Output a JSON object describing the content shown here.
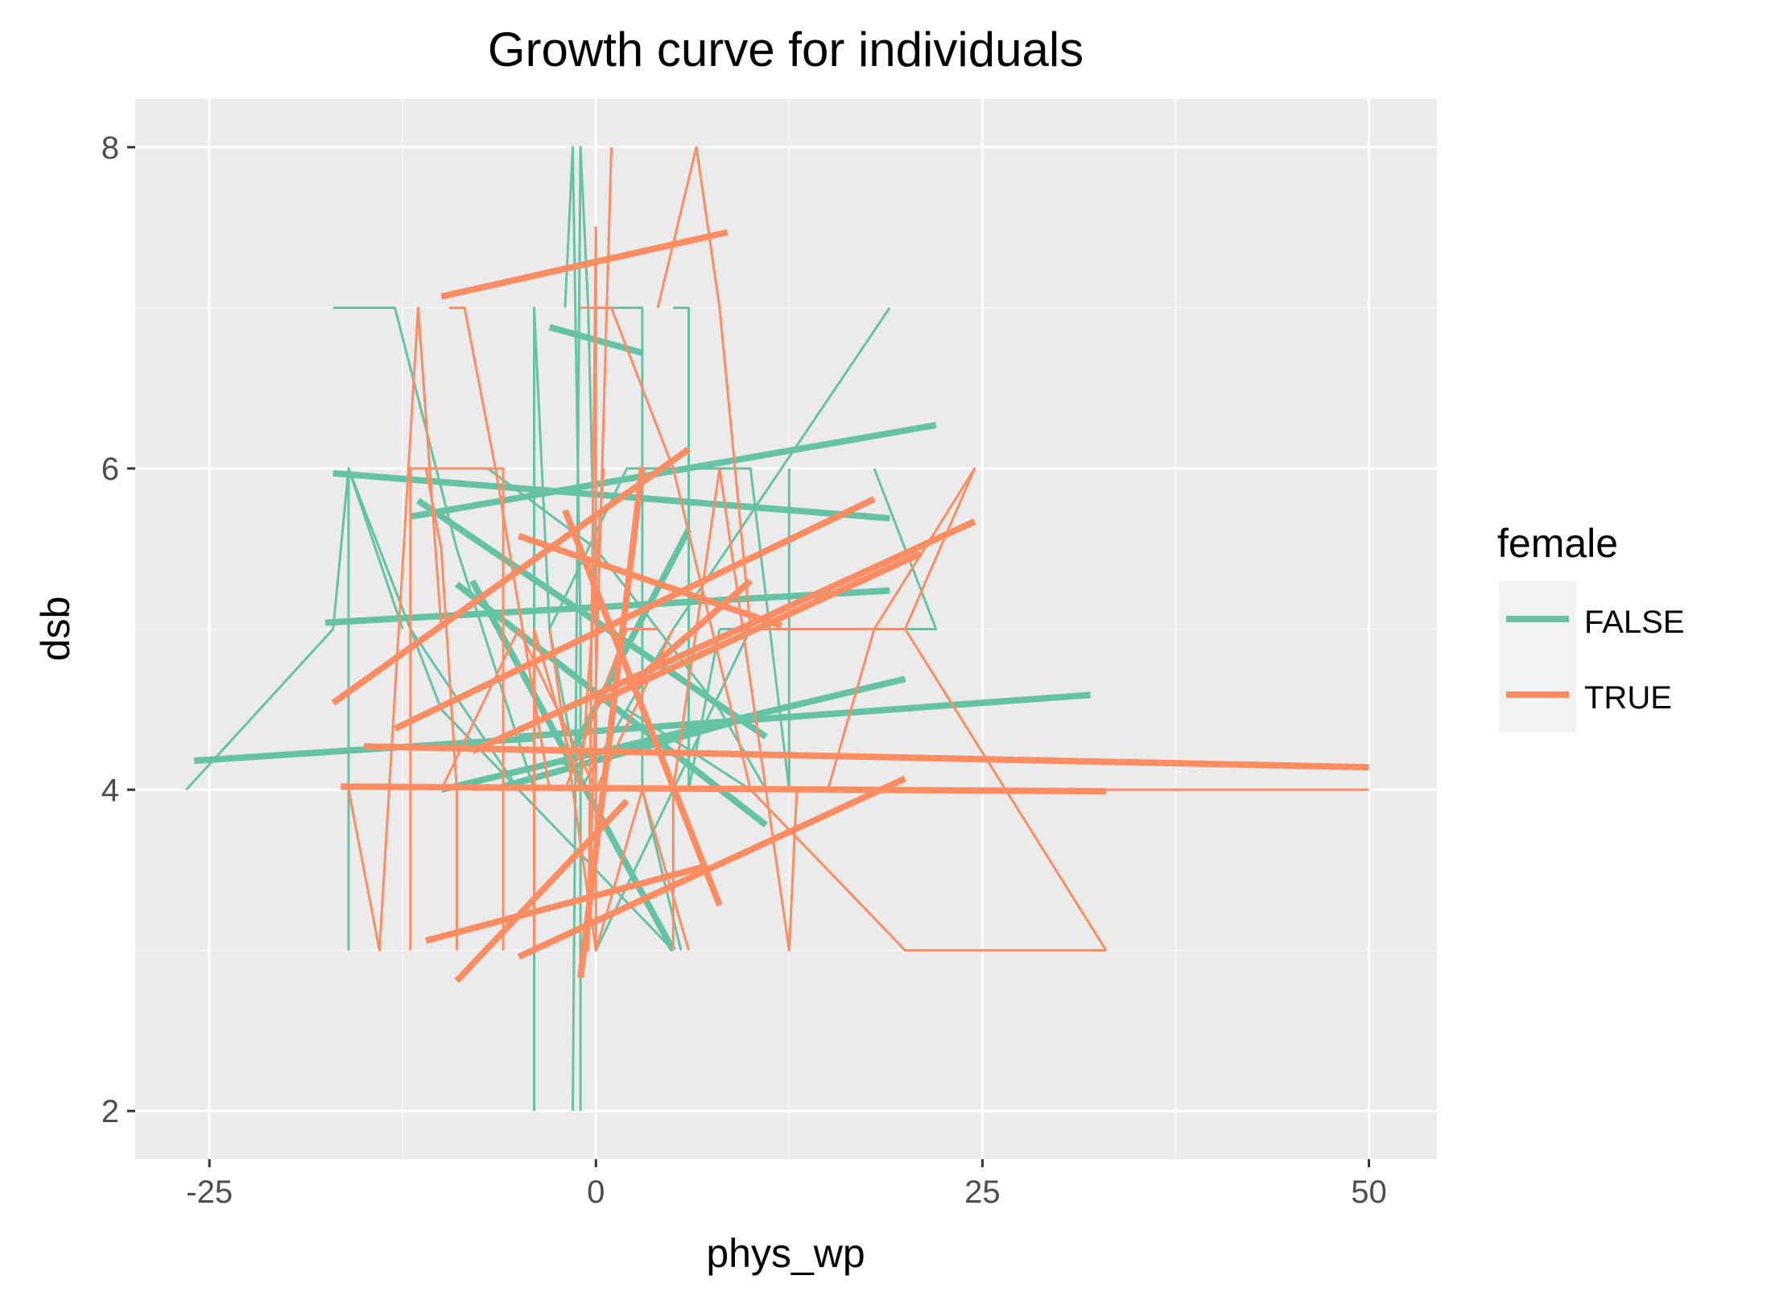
{
  "chart_data": {
    "type": "line",
    "title": "Growth curve for individuals",
    "xlabel": "phys_wp",
    "ylabel": "dsb",
    "xlim": [
      -29.8,
      54.4
    ],
    "ylim": [
      1.7,
      8.3
    ],
    "xticks": [
      -25,
      0,
      25,
      50
    ],
    "yticks": [
      2,
      4,
      6,
      8
    ],
    "xtick_labels": [
      "-25",
      "0",
      "25",
      "50"
    ],
    "ytick_labels": [
      "2",
      "4",
      "6",
      "8"
    ],
    "grid": true,
    "legend": {
      "title": "female",
      "position": "right",
      "entries": [
        "FALSE",
        "TRUE"
      ]
    },
    "colors": {
      "FALSE": "#66C2A5",
      "TRUE": "#FC8D62",
      "panel": "#EBEBEB",
      "grid": "#FFFFFF"
    },
    "series": [
      {
        "name": "FALSE",
        "observed": [
          [
            [
              -26.5,
              4.0
            ],
            [
              -17.0,
              5.0
            ],
            [
              -16.0,
              6.0
            ],
            [
              -12.5,
              5.0
            ]
          ],
          [
            [
              -17.0,
              7.0
            ],
            [
              -13.0,
              7.0
            ],
            [
              -9.0,
              5.5
            ],
            [
              -4.0,
              4.0
            ]
          ],
          [
            [
              -16.0,
              3.0
            ],
            [
              -16.0,
              6.0
            ],
            [
              -10.0,
              4.5
            ],
            [
              -5.0,
              4.0
            ]
          ],
          [
            [
              -4.0,
              2.0
            ],
            [
              -4.0,
              7.0
            ],
            [
              -3.0,
              5.0
            ],
            [
              -1.0,
              4.0
            ]
          ],
          [
            [
              -1.5,
              2.0
            ],
            [
              -1.0,
              8.0
            ],
            [
              -0.5,
              7.0
            ],
            [
              0.0,
              5.0
            ]
          ],
          [
            [
              -2.0,
              7.0
            ],
            [
              -1.5,
              8.0
            ],
            [
              -1.0,
              5.0
            ],
            [
              -1.0,
              2.0
            ]
          ],
          [
            [
              0.5,
              7.0
            ],
            [
              3.0,
              7.0
            ],
            [
              3.0,
              4.0
            ],
            [
              5.5,
              3.0
            ]
          ],
          [
            [
              5.0,
              7.0
            ],
            [
              6.0,
              7.0
            ],
            [
              6.0,
              4.0
            ],
            [
              8.0,
              5.0
            ]
          ],
          [
            [
              -3.0,
              5.0
            ],
            [
              2.0,
              6.0
            ],
            [
              6.0,
              6.0
            ],
            [
              10.0,
              6.0
            ],
            [
              12.5,
              4.0
            ],
            [
              12.5,
              6.0
            ]
          ],
          [
            [
              8.0,
              5.0
            ],
            [
              12.0,
              5.0
            ],
            [
              22.0,
              5.0
            ],
            [
              18.0,
              6.0
            ]
          ],
          [
            [
              -1.0,
              4.0
            ],
            [
              5.0,
              5.0
            ],
            [
              19.0,
              7.0
            ]
          ],
          [
            [
              2.0,
              4.5
            ],
            [
              10.0,
              4.0
            ],
            [
              12.0,
              4.0
            ],
            [
              32.0,
              4.0
            ]
          ],
          [
            [
              -7.0,
              6.0
            ],
            [
              0.0,
              5.5
            ],
            [
              8.0,
              4.5
            ],
            [
              11.0,
              4.0
            ]
          ],
          [
            [
              -12.0,
              5.0
            ],
            [
              -5.0,
              4.0
            ],
            [
              5.0,
              3.0
            ]
          ],
          [
            [
              0.0,
              3.0
            ],
            [
              5.0,
              4.0
            ],
            [
              10.0,
              5.0
            ],
            [
              15.0,
              5.0
            ]
          ]
        ],
        "fitted": [
          [
            [
              -26.0,
              4.18
            ],
            [
              -4.0,
              4.32
            ]
          ],
          [
            [
              -17.0,
              5.97
            ],
            [
              19.0,
              5.69
            ]
          ],
          [
            [
              -17.5,
              5.04
            ],
            [
              19.0,
              5.24
            ]
          ],
          [
            [
              -12.0,
              5.7
            ],
            [
              22.0,
              6.27
            ]
          ],
          [
            [
              -3.0,
              6.88
            ],
            [
              3.0,
              6.72
            ]
          ],
          [
            [
              -11.5,
              5.8
            ],
            [
              11.0,
              4.33
            ]
          ],
          [
            [
              -9.0,
              5.28
            ],
            [
              11.0,
              3.78
            ]
          ],
          [
            [
              -10.0,
              4.0
            ],
            [
              20.0,
              4.69
            ]
          ],
          [
            [
              -5.0,
              4.33
            ],
            [
              32.0,
              4.59
            ]
          ],
          [
            [
              -8.0,
              5.3
            ],
            [
              5.0,
              3.0
            ]
          ],
          [
            [
              -6.0,
              4.02
            ],
            [
              10.0,
              4.45
            ]
          ],
          [
            [
              -2.0,
              4.15
            ],
            [
              6.0,
              5.62
            ]
          ]
        ]
      },
      {
        "name": "TRUE",
        "observed": [
          [
            [
              -16.0,
              4.0
            ],
            [
              -14.0,
              3.0
            ],
            [
              -11.5,
              7.0
            ],
            [
              -10.0,
              5.0
            ]
          ],
          [
            [
              -9.5,
              7.0
            ],
            [
              -8.5,
              7.0
            ],
            [
              -6.5,
              6.0
            ],
            [
              -3.0,
              4.0
            ]
          ],
          [
            [
              -11.0,
              6.0
            ],
            [
              -10.0,
              5.5
            ],
            [
              -9.0,
              4.0
            ],
            [
              -9.0,
              3.0
            ]
          ],
          [
            [
              1.0,
              8.0
            ],
            [
              -0.5,
              3.0
            ],
            [
              0.0,
              7.5
            ],
            [
              0.0,
              3.0
            ]
          ],
          [
            [
              4.0,
              7.0
            ],
            [
              6.5,
              8.0
            ],
            [
              8.0,
              7.0
            ],
            [
              10.0,
              5.0
            ],
            [
              20.0,
              5.0
            ]
          ],
          [
            [
              -1.0,
              7.0
            ],
            [
              1.0,
              7.0
            ],
            [
              5.0,
              6.0
            ],
            [
              10.0,
              4.0
            ],
            [
              20.0,
              3.0
            ],
            [
              33.0,
              3.0
            ]
          ],
          [
            [
              5.0,
              3.0
            ],
            [
              5.0,
              4.0
            ],
            [
              8.0,
              6.0
            ],
            [
              12.5,
              3.0
            ],
            [
              13.0,
              4.0
            ]
          ],
          [
            [
              11.0,
              4.0
            ],
            [
              20.0,
              4.0
            ],
            [
              35.0,
              4.0
            ],
            [
              50.0,
              4.0
            ]
          ],
          [
            [
              -10.0,
              4.0
            ],
            [
              -5.0,
              5.0
            ],
            [
              0.0,
              4.0
            ],
            [
              5.0,
              5.0
            ]
          ],
          [
            [
              -4.0,
              3.0
            ],
            [
              -4.0,
              5.0
            ],
            [
              -1.0,
              4.0
            ],
            [
              0.5,
              6.0
            ]
          ],
          [
            [
              -12.0,
              3.0
            ],
            [
              -12.0,
              6.0
            ],
            [
              -6.0,
              6.0
            ],
            [
              -6.0,
              3.0
            ]
          ],
          [
            [
              15.0,
              4.0
            ],
            [
              18.0,
              5.0
            ],
            [
              24.5,
              6.0
            ],
            [
              20.0,
              5.0
            ],
            [
              33.0,
              3.0
            ]
          ],
          [
            [
              -3.0,
              5.0
            ],
            [
              0.0,
              3.0
            ],
            [
              3.0,
              4.0
            ],
            [
              6.0,
              3.0
            ]
          ],
          [
            [
              -8.0,
              4.0
            ],
            [
              -2.0,
              4.0
            ],
            [
              2.0,
              5.0
            ],
            [
              4.0,
              5.0
            ]
          ]
        ],
        "fitted": [
          [
            [
              -10.0,
              7.07
            ],
            [
              8.5,
              7.47
            ]
          ],
          [
            [
              -17.0,
              4.54
            ],
            [
              6.0,
              6.12
            ]
          ],
          [
            [
              -16.5,
              4.02
            ],
            [
              33.0,
              3.99
            ]
          ],
          [
            [
              -15.0,
              4.27
            ],
            [
              50.0,
              4.14
            ]
          ],
          [
            [
              -13.0,
              4.38
            ],
            [
              18.0,
              5.81
            ]
          ],
          [
            [
              -11.0,
              3.06
            ],
            [
              7.0,
              3.52
            ]
          ],
          [
            [
              -9.0,
              2.81
            ],
            [
              2.0,
              3.93
            ]
          ],
          [
            [
              -5.0,
              2.96
            ],
            [
              20.0,
              4.07
            ]
          ],
          [
            [
              -8.0,
              4.24
            ],
            [
              24.5,
              5.67
            ]
          ],
          [
            [
              -2.0,
              5.74
            ],
            [
              8.0,
              3.28
            ]
          ],
          [
            [
              -1.0,
              2.83
            ],
            [
              3.0,
              6.01
            ]
          ],
          [
            [
              0.0,
              4.54
            ],
            [
              21.0,
              5.47
            ]
          ],
          [
            [
              -5.0,
              5.58
            ],
            [
              12.0,
              5.02
            ]
          ],
          [
            [
              2.0,
              4.63
            ],
            [
              10.0,
              5.3
            ]
          ]
        ]
      }
    ]
  }
}
